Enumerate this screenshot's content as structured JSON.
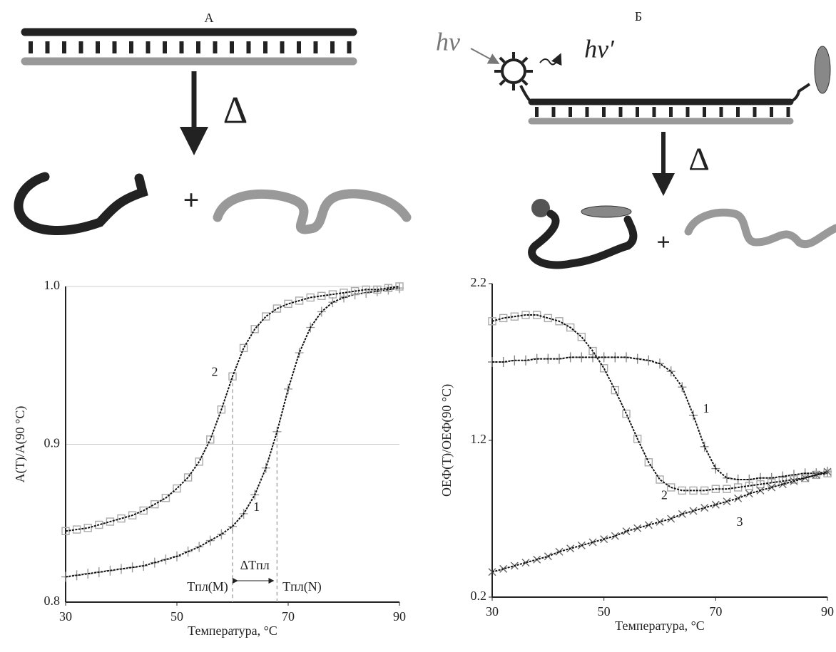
{
  "panels": [
    {
      "label": "А",
      "heat": "Δ",
      "plus": "+"
    },
    {
      "label": "Б",
      "excitation": "hv",
      "emission": "hv′",
      "heat": "Δ",
      "plus": "+"
    }
  ],
  "chart_data": [
    {
      "type": "line",
      "x_label": "Температура, °C",
      "y_label": "A(T)/A(90 °C)",
      "xlim": [
        30,
        90
      ],
      "xticks": [
        30,
        50,
        70,
        90
      ],
      "ylim": [
        0.8,
        1.0
      ],
      "yticks": [
        0.8,
        0.9,
        {
          "value": 1.0,
          "label": "1.0"
        }
      ],
      "grid": true,
      "x": [
        30,
        32,
        34,
        36,
        38,
        40,
        42,
        44,
        46,
        48,
        50,
        52,
        54,
        56,
        58,
        60,
        62,
        64,
        66,
        68,
        70,
        72,
        74,
        76,
        78,
        80,
        82,
        84,
        86,
        88,
        90
      ],
      "series": [
        {
          "name": "1",
          "color": "#999999",
          "marker": "plus",
          "values": [
            0.816,
            0.817,
            0.818,
            0.819,
            0.82,
            0.821,
            0.822,
            0.823,
            0.825,
            0.827,
            0.829,
            0.832,
            0.835,
            0.839,
            0.843,
            0.848,
            0.856,
            0.868,
            0.885,
            0.908,
            0.935,
            0.958,
            0.974,
            0.984,
            0.99,
            0.993,
            0.995,
            0.996,
            0.997,
            0.998,
            0.999
          ]
        },
        {
          "name": "2",
          "color": "#aaaaaa",
          "marker": "square",
          "values": [
            0.845,
            0.846,
            0.847,
            0.849,
            0.851,
            0.853,
            0.855,
            0.858,
            0.862,
            0.866,
            0.872,
            0.879,
            0.889,
            0.903,
            0.922,
            0.943,
            0.961,
            0.973,
            0.981,
            0.986,
            0.989,
            0.991,
            0.993,
            0.994,
            0.995,
            0.996,
            0.997,
            0.998,
            0.998,
            0.999,
            1.0
          ]
        }
      ],
      "markers": [
        {
          "x": 60,
          "label": "Tпл(M)"
        },
        {
          "x": 68,
          "label": "Tпл(N)"
        }
      ],
      "delta_label": "ΔTпл"
    },
    {
      "type": "line",
      "x_label": "Температура, °C",
      "y_label": "ОЕФ(T)/ОЕФ(90 °C)",
      "xlim": [
        30,
        90
      ],
      "xticks": [
        30,
        50,
        70,
        90
      ],
      "ylim": [
        0.2,
        2.2
      ],
      "yticks": [
        0.2,
        1.2,
        2.2
      ],
      "grid": false,
      "x": [
        30,
        32,
        34,
        36,
        38,
        40,
        42,
        44,
        46,
        48,
        50,
        52,
        54,
        56,
        58,
        60,
        62,
        64,
        66,
        68,
        70,
        72,
        74,
        76,
        78,
        80,
        82,
        84,
        86,
        88,
        90
      ],
      "series": [
        {
          "name": "1",
          "color": "#888888",
          "marker": "plus",
          "values": [
            1.7,
            1.7,
            1.71,
            1.71,
            1.72,
            1.72,
            1.72,
            1.73,
            1.73,
            1.73,
            1.73,
            1.73,
            1.73,
            1.72,
            1.71,
            1.69,
            1.64,
            1.54,
            1.36,
            1.16,
            1.02,
            0.96,
            0.95,
            0.95,
            0.96,
            0.96,
            0.97,
            0.98,
            0.99,
            0.99,
            1.0
          ]
        },
        {
          "name": "2",
          "color": "#aaaaaa",
          "marker": "square",
          "values": [
            1.96,
            1.98,
            1.99,
            2.0,
            2.0,
            1.98,
            1.96,
            1.92,
            1.86,
            1.77,
            1.66,
            1.52,
            1.37,
            1.21,
            1.06,
            0.95,
            0.9,
            0.88,
            0.88,
            0.88,
            0.89,
            0.89,
            0.9,
            0.91,
            0.92,
            0.93,
            0.94,
            0.95,
            0.96,
            0.98,
            0.99
          ]
        },
        {
          "name": "3",
          "color": "#666666",
          "marker": "cross",
          "values": [
            0.36,
            0.38,
            0.4,
            0.42,
            0.44,
            0.46,
            0.49,
            0.51,
            0.53,
            0.55,
            0.57,
            0.59,
            0.62,
            0.64,
            0.66,
            0.68,
            0.7,
            0.73,
            0.75,
            0.77,
            0.79,
            0.81,
            0.83,
            0.86,
            0.88,
            0.9,
            0.92,
            0.94,
            0.96,
            0.98,
            1.0
          ]
        }
      ]
    }
  ]
}
